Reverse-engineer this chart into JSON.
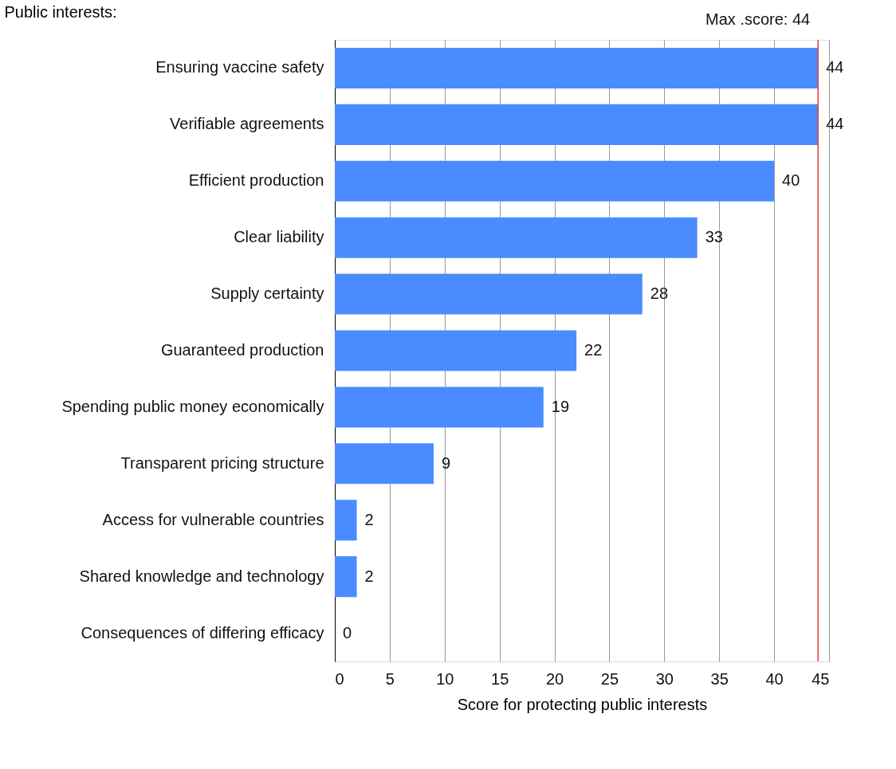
{
  "chart_data": {
    "type": "bar",
    "orientation": "horizontal",
    "ylabel": "Public interests:",
    "xlabel": "Score for protecting public interests",
    "categories": [
      "Ensuring vaccine safety",
      "Verifiable agreements",
      "Efficient production",
      "Clear liability",
      "Supply certainty",
      "Guaranteed production",
      "Spending public money economically",
      "Transparent pricing structure",
      "Access for vulnerable countries",
      "Shared knowledge and technology",
      "Consequences of differing efficacy"
    ],
    "values": [
      44,
      44,
      40,
      33,
      28,
      22,
      19,
      9,
      2,
      2,
      0
    ],
    "color": "#4a8cff",
    "xlim": [
      0,
      45
    ],
    "xticks": [
      0,
      5,
      10,
      15,
      20,
      25,
      30,
      35,
      40,
      45
    ],
    "grid": "x",
    "data_labels": true,
    "ref_lines": [
      {
        "axis": "x",
        "value": 44,
        "label": "Max .score: 44",
        "color": "#e0403a"
      }
    ]
  }
}
